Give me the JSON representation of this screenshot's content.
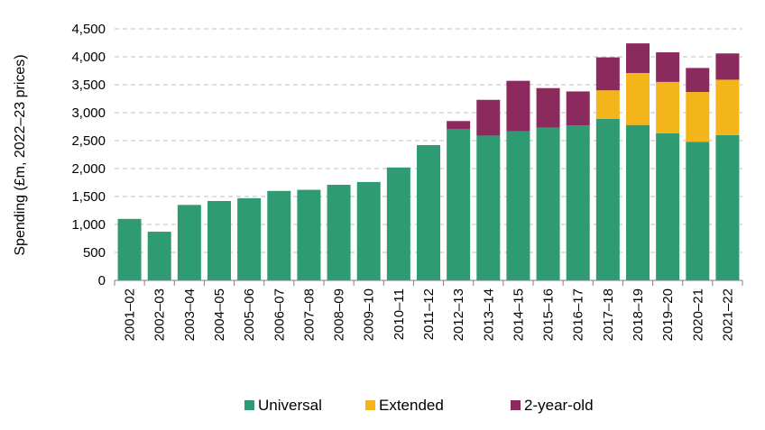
{
  "chart_data": {
    "type": "bar",
    "stacked": true,
    "ylabel": "Spending (£m, 2022–23 prices)",
    "xlabel": "",
    "ylim": [
      0,
      4500
    ],
    "yticks": [
      0,
      500,
      1000,
      1500,
      2000,
      2500,
      3000,
      3500,
      4000,
      4500
    ],
    "ytick_labels": [
      "0",
      "500",
      "1,000",
      "1,500",
      "2,000",
      "2,500",
      "3,000",
      "3,500",
      "4,000",
      "4,500"
    ],
    "grid": true,
    "legend_position": "bottom",
    "categories": [
      "2001–02",
      "2002–03",
      "2003–04",
      "2004–05",
      "2005–06",
      "2006–07",
      "2007–08",
      "2008–09",
      "2009–10",
      "2010–11",
      "2011–12",
      "2012–13",
      "2013–14",
      "2014–15",
      "2015–16",
      "2016–17",
      "2017–18",
      "2018–19",
      "2019–20",
      "2020–21",
      "2021–22"
    ],
    "series": [
      {
        "name": "Universal",
        "color": "#2e9b72",
        "values": [
          1100,
          870,
          1350,
          1420,
          1470,
          1600,
          1620,
          1710,
          1760,
          2020,
          2420,
          2710,
          2590,
          2670,
          2730,
          2770,
          2890,
          2780,
          2630,
          2480,
          2600
        ]
      },
      {
        "name": "Extended",
        "color": "#f4b51a",
        "values": [
          0,
          0,
          0,
          0,
          0,
          0,
          0,
          0,
          0,
          0,
          0,
          0,
          0,
          0,
          0,
          0,
          510,
          930,
          920,
          890,
          990
        ]
      },
      {
        "name": "2-year-old",
        "color": "#8b2a5c",
        "values": [
          0,
          0,
          0,
          0,
          0,
          0,
          0,
          0,
          0,
          0,
          0,
          140,
          640,
          900,
          710,
          610,
          590,
          530,
          530,
          430,
          470
        ]
      }
    ]
  }
}
